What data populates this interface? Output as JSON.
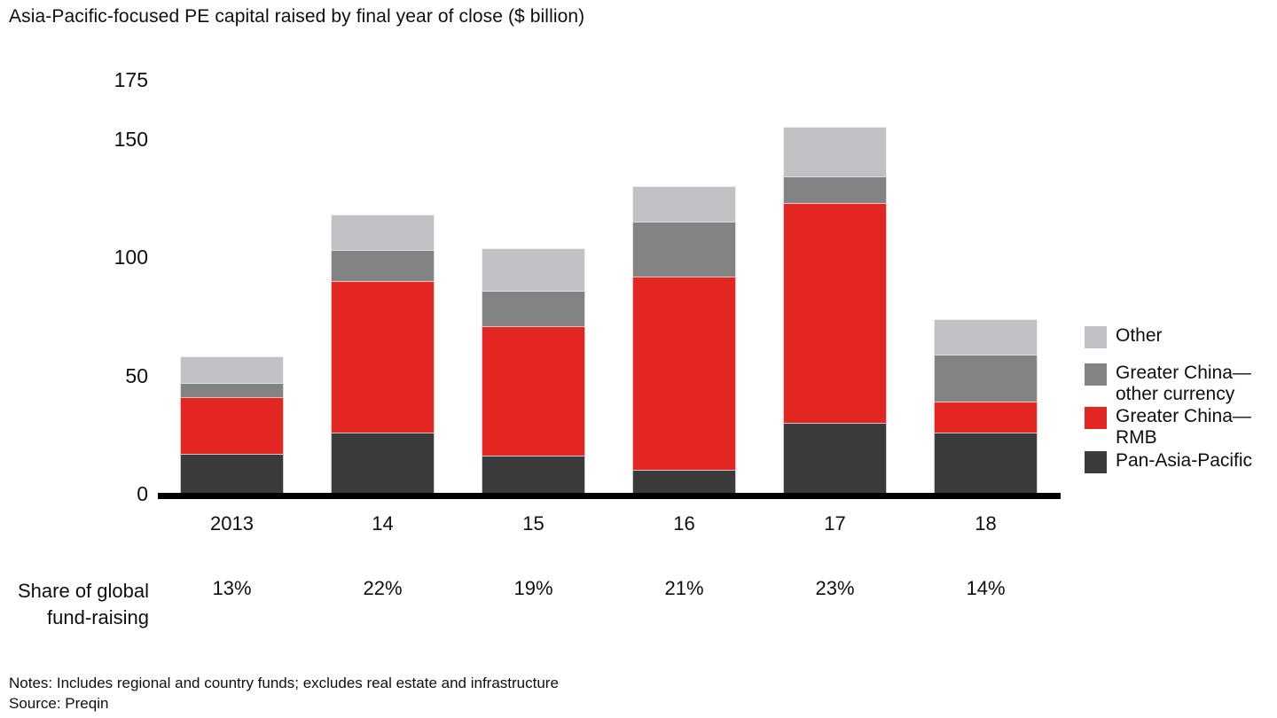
{
  "title": "Asia-Pacific-focused PE capital raised by final year of close ($ billion)",
  "chart_data": {
    "type": "bar",
    "stacked": true,
    "title": "Asia-Pacific-focused PE capital raised by final year of close ($ billion)",
    "categories": [
      "2013",
      "14",
      "15",
      "16",
      "17",
      "18"
    ],
    "series": [
      {
        "name": "Pan-Asia-Pacific",
        "legend_lines": [
          "Pan-Asia-Pacific"
        ],
        "color": "#3b3b3d",
        "values": [
          17,
          26,
          16,
          10,
          30,
          26
        ]
      },
      {
        "name": "Greater China—RMB",
        "legend_lines": [
          "Greater China—",
          "RMB"
        ],
        "color": "#e22723",
        "values": [
          24,
          64,
          55,
          82,
          93,
          13
        ]
      },
      {
        "name": "Greater China—other currency",
        "legend_lines": [
          "Greater China—",
          "other currency"
        ],
        "color": "#828385",
        "values": [
          6,
          13,
          15,
          23,
          11,
          20
        ]
      },
      {
        "name": "Other",
        "legend_lines": [
          "Other"
        ],
        "color": "#bfc1c5",
        "values": [
          11,
          15,
          18,
          15,
          21,
          15
        ]
      }
    ],
    "totals": [
      58,
      118,
      104,
      130,
      155,
      74
    ],
    "yticks": [
      0,
      50,
      100,
      150,
      175
    ],
    "ylim": [
      0,
      175
    ],
    "grid": false,
    "legend_position": "right",
    "share_of_global": {
      "label_lines": [
        "Share of global",
        "fund-raising"
      ],
      "values": [
        "13%",
        "22%",
        "19%",
        "21%",
        "23%",
        "14%"
      ]
    }
  },
  "footer": {
    "notes": "Notes: Includes regional and country funds; excludes real estate and infrastructure",
    "source": "Source: Preqin"
  }
}
